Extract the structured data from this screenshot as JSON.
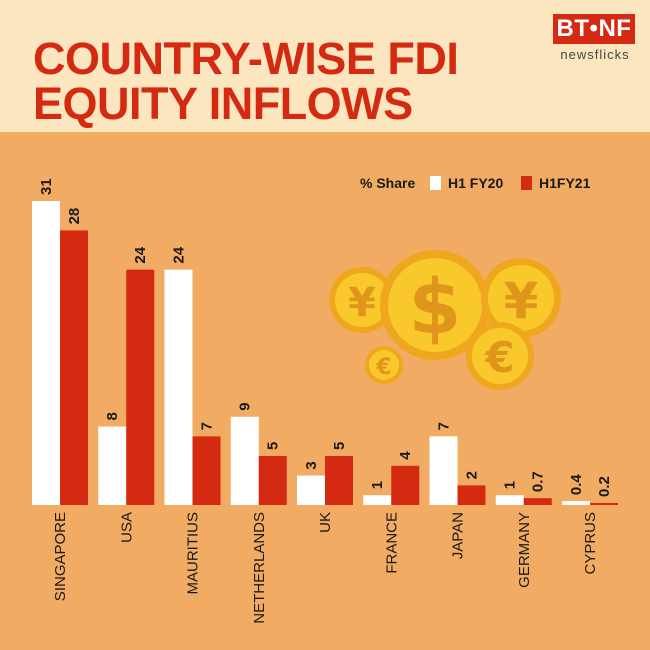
{
  "header": {
    "title_line1": "COUNTRY-WISE FDI",
    "title_line2": "EQUITY INFLOWS",
    "logo_text": "BT•NF",
    "logo_sub": "newsflicks"
  },
  "colors": {
    "background": "#f2ab62",
    "header_bg": "#fbe6c0",
    "accent": "#d52a12",
    "series_h1fy20": "#ffffff",
    "series_h1fy21": "#d52a12"
  },
  "decoration": {
    "coins": [
      "yen-coin-icon",
      "dollar-coin-icon",
      "yen-coin-icon",
      "euro-coin-icon",
      "euro-coin-icon"
    ]
  },
  "chart_data": {
    "type": "bar",
    "legend_title": "% Share",
    "categories": [
      "SINGAPORE",
      "USA",
      "MAURITIUS",
      "NETHERLANDS",
      "UK",
      "FRANCE",
      "JAPAN",
      "GERMANY",
      "CYPRUS"
    ],
    "series": [
      {
        "name": "H1 FY20",
        "values": [
          31,
          8,
          24,
          9,
          3,
          1,
          7,
          1,
          0.4
        ],
        "labels": [
          "31",
          "8",
          "24",
          "9",
          "3",
          "1",
          "7",
          "1",
          "0.4"
        ]
      },
      {
        "name": "H1FY21",
        "values": [
          28,
          24,
          7,
          5,
          5,
          4,
          2,
          0.7,
          0.2
        ],
        "labels": [
          "28",
          "24",
          "7",
          "5",
          "5",
          "4",
          "2",
          "0.7",
          "0.2"
        ]
      }
    ],
    "ylim": [
      0,
      31
    ],
    "grid": false,
    "legend_position": "top-right"
  }
}
